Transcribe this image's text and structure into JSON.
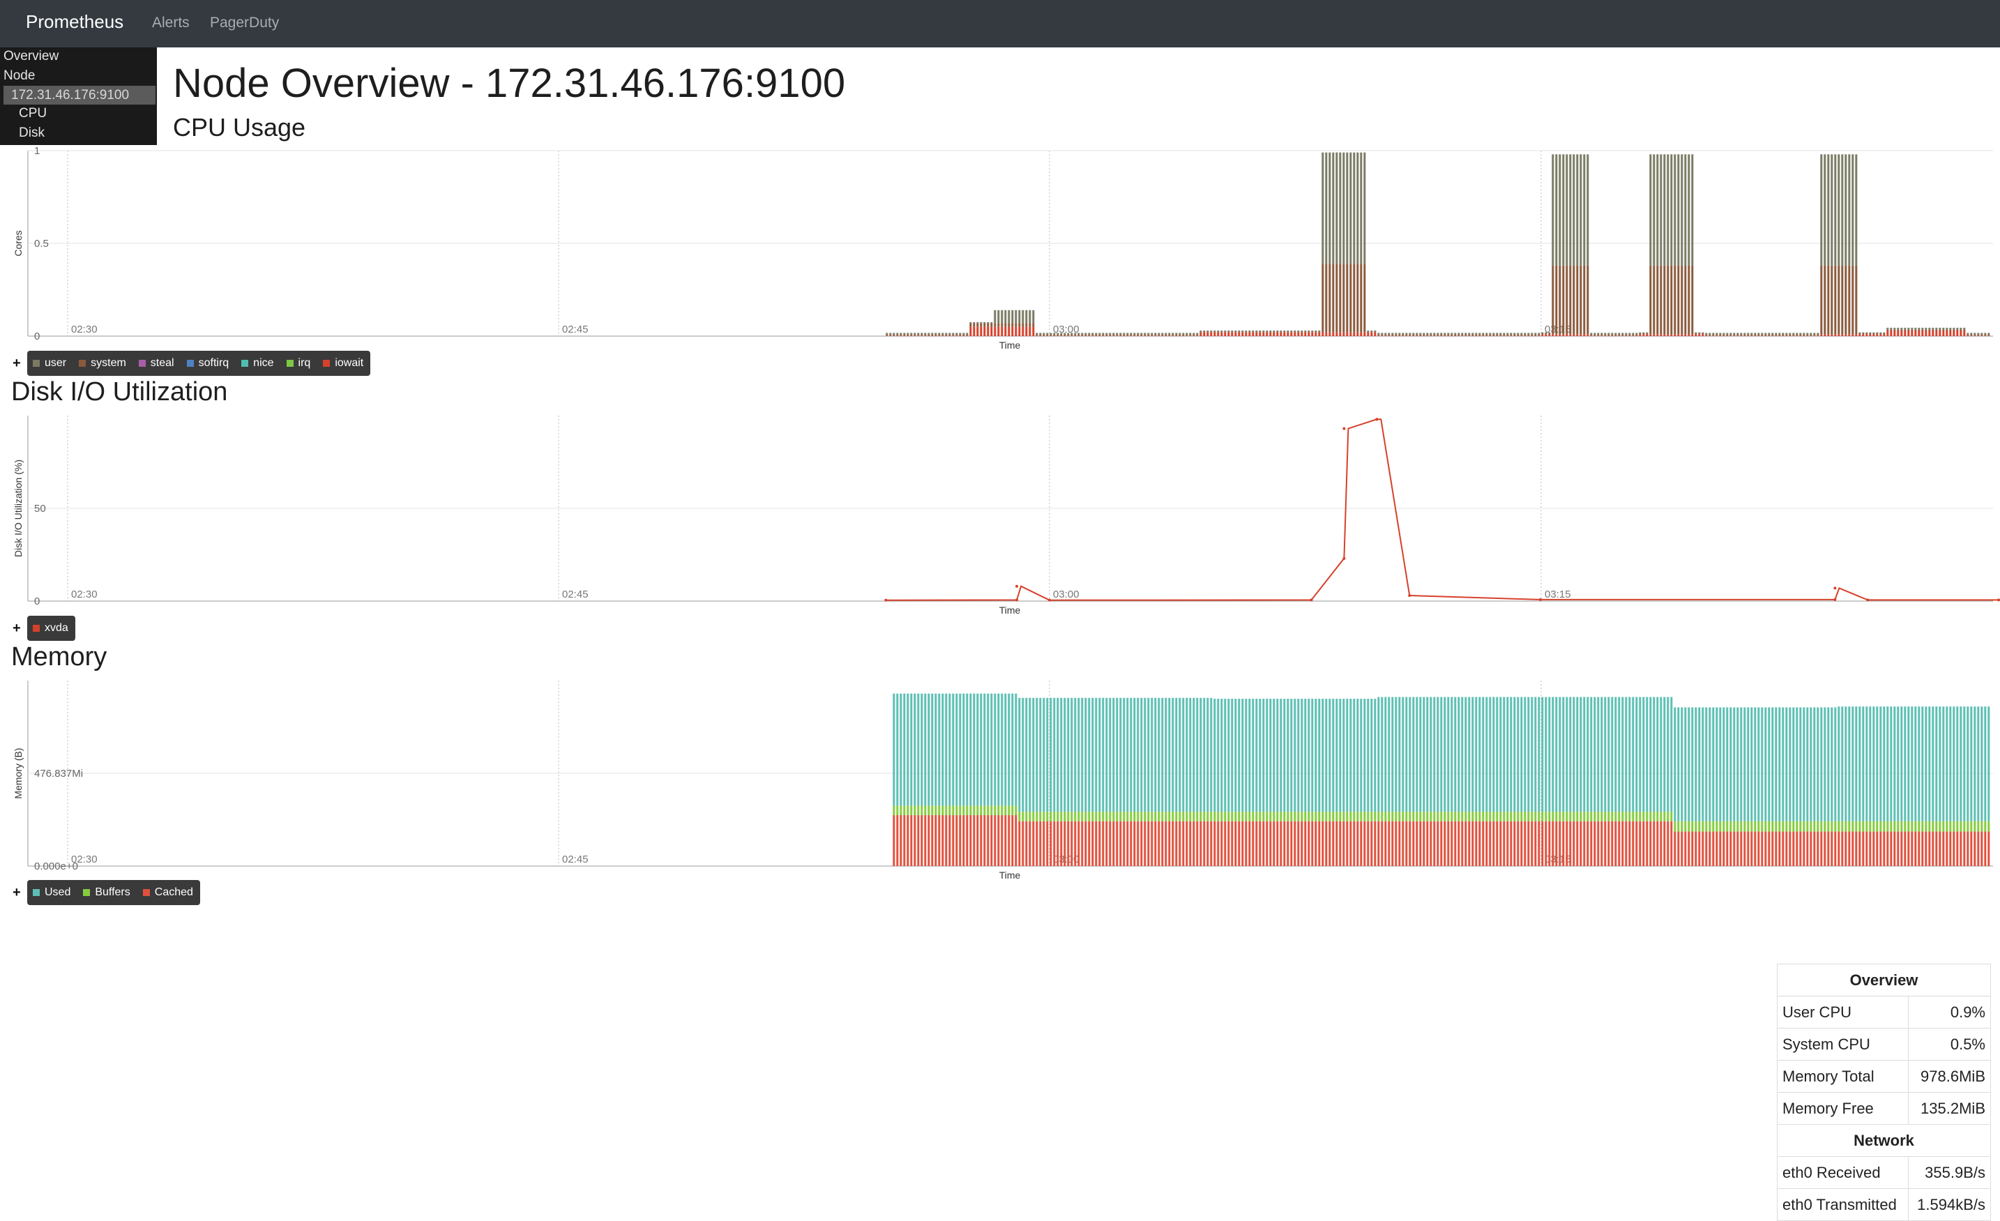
{
  "navbar": {
    "brand": "Prometheus",
    "links": [
      "Alerts",
      "PagerDuty"
    ]
  },
  "menu": {
    "items": [
      {
        "label": "Overview",
        "active": false
      },
      {
        "label": "Node",
        "active": false
      },
      {
        "label": "172.31.46.176:9100",
        "active": true
      },
      {
        "label": "CPU",
        "active": false
      },
      {
        "label": "Disk",
        "active": false
      }
    ]
  },
  "page": {
    "title": "Node Overview - 172.31.46.176:9100"
  },
  "sections": {
    "cpu": "CPU Usage",
    "disk": "Disk I/O Utilization",
    "memory": "Memory"
  },
  "legend_toggle": "+",
  "colors": {
    "user": "#7b7b64",
    "system": "#8b5a3c",
    "steal": "#a85ea8",
    "softirq": "#4f82c2",
    "nice": "#4fbfb0",
    "irq": "#7dc742",
    "iowait": "#d6412b",
    "xvda": "#d6412b",
    "used": "#5cbfb3",
    "buffers": "#86cc3f",
    "cached": "#e0513d",
    "grid": "#e3e3e3",
    "axis_text": "#777777"
  },
  "chart_data": [
    {
      "type": "bar",
      "title": "CPU Usage",
      "ylabel": "Cores",
      "xlabel": "Time",
      "x_ticks": [
        "02:30",
        "02:45",
        "03:00",
        "03:15"
      ],
      "y_ticks": [
        "0",
        "0.5",
        "1"
      ],
      "ylim": [
        0,
        1
      ],
      "stacked": true,
      "series": [
        {
          "name": "user",
          "values": [
            0.01,
            0.07,
            0.01,
            0.6,
            0.01,
            0.01,
            0.6,
            0.01,
            0.6,
            0.01,
            0.01,
            0.6,
            0.01,
            0.01
          ]
        },
        {
          "name": "system",
          "values": [
            0.005,
            0.02,
            0.005,
            0.37,
            0.005,
            0.005,
            0.37,
            0.005,
            0.37,
            0.005,
            0.005,
            0.37,
            0.005,
            0.005
          ]
        },
        {
          "name": "steal",
          "values": [
            0,
            0,
            0,
            0,
            0,
            0,
            0,
            0,
            0,
            0,
            0,
            0,
            0,
            0
          ]
        },
        {
          "name": "softirq",
          "values": [
            0,
            0,
            0,
            0,
            0,
            0,
            0,
            0,
            0,
            0,
            0,
            0,
            0,
            0
          ]
        },
        {
          "name": "nice",
          "values": [
            0,
            0,
            0,
            0,
            0,
            0,
            0,
            0,
            0,
            0,
            0,
            0,
            0,
            0
          ]
        },
        {
          "name": "irq",
          "values": [
            0,
            0,
            0,
            0,
            0,
            0,
            0,
            0,
            0,
            0,
            0,
            0,
            0,
            0
          ]
        },
        {
          "name": "iowait",
          "values": [
            0.001,
            0.05,
            0.001,
            0.02,
            0.001,
            0.001,
            0.01,
            0.001,
            0.01,
            0.001,
            0.001,
            0.01,
            0.03,
            0.001
          ]
        }
      ],
      "x": [
        "02:56",
        "02:59",
        "03:00",
        "03:09",
        "03:11",
        "03:14",
        "03:16",
        "03:17",
        "03:19",
        "03:21",
        "03:23",
        "03:24",
        "03:27",
        "03:29"
      ],
      "legend": [
        "user",
        "system",
        "steal",
        "softirq",
        "nice",
        "irq",
        "iowait"
      ],
      "grid": true,
      "legend_position": "bottom-left"
    },
    {
      "type": "line",
      "title": "Disk I/O Utilization",
      "ylabel": "Disk I/O Utilization (%)",
      "xlabel": "Time",
      "x_ticks": [
        "02:30",
        "02:45",
        "03:00",
        "03:15"
      ],
      "y_ticks": [
        "0",
        "50"
      ],
      "ylim": [
        0,
        100
      ],
      "series": [
        {
          "name": "xvda",
          "x": [
            "02:55",
            "02:59",
            "02:59",
            "03:00",
            "03:08",
            "03:09",
            "03:09",
            "03:10",
            "03:10",
            "03:11",
            "03:15",
            "03:24",
            "03:24",
            "03:25",
            "03:29"
          ],
          "values": [
            0.5,
            0.6,
            8,
            0.5,
            0.6,
            23,
            93,
            98,
            98,
            3,
            0.8,
            0.8,
            7,
            0.6,
            0.6
          ]
        }
      ],
      "legend": [
        "xvda"
      ],
      "grid": true,
      "legend_position": "bottom-left"
    },
    {
      "type": "bar",
      "title": "Memory",
      "ylabel": "Memory (B)",
      "xlabel": "Time",
      "x_ticks": [
        "02:30",
        "02:45",
        "03:00",
        "03:15"
      ],
      "y_ticks": [
        "0.000e+0",
        "476.837Mi"
      ],
      "stacked": true,
      "unit": "MiB",
      "ylim": [
        0,
        1000
      ],
      "x": [
        "02:55",
        "02:59",
        "03:05",
        "03:10",
        "03:15",
        "03:19",
        "03:24",
        "03:29"
      ],
      "series": [
        {
          "name": "Cached",
          "values": [
            295,
            260,
            260,
            260,
            260,
            200,
            200,
            200
          ]
        },
        {
          "name": "Buffers",
          "values": [
            55,
            55,
            55,
            55,
            55,
            60,
            60,
            60
          ]
        },
        {
          "name": "Used",
          "values": [
            650,
            660,
            655,
            665,
            665,
            660,
            665,
            675
          ]
        }
      ],
      "legend": [
        "Used",
        "Buffers",
        "Cached"
      ],
      "grid": true,
      "legend_position": "bottom-left"
    }
  ],
  "overview": {
    "heading": "Overview",
    "rows": [
      {
        "label": "User CPU",
        "value": "0.9%"
      },
      {
        "label": "System CPU",
        "value": "0.5%"
      },
      {
        "label": "Memory Total",
        "value": "978.6MiB"
      },
      {
        "label": "Memory Free",
        "value": "135.2MiB"
      }
    ],
    "network_heading": "Network",
    "network_rows": [
      {
        "label": "eth0 Received",
        "value": "355.9B/s"
      },
      {
        "label": "eth0 Transmitted",
        "value": "1.594kB/s"
      }
    ]
  }
}
